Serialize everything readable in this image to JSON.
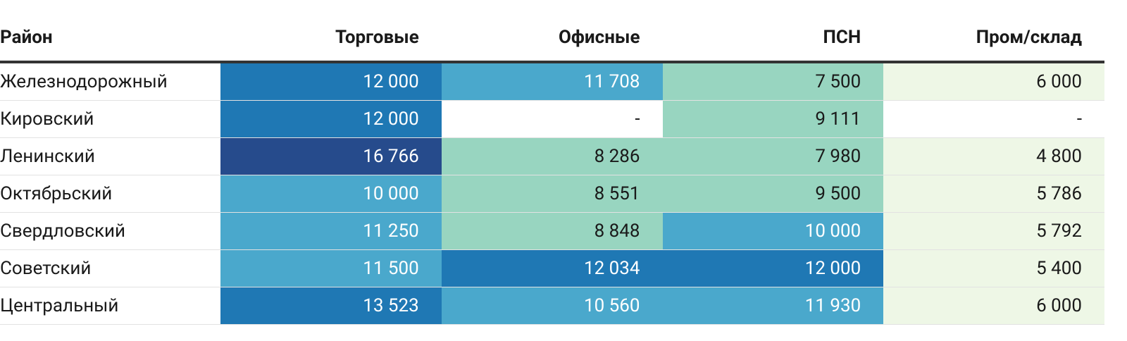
{
  "table": {
    "header": [
      "Район",
      "Торговые",
      "Офисные",
      "ПСН",
      "Пром/склад"
    ],
    "rows": [
      [
        "Железнодорожный",
        "12 000",
        "11 708",
        "7 500",
        "6 000"
      ],
      [
        "Кировский",
        "12 000",
        "-",
        "9 111",
        "-"
      ],
      [
        "Ленинский",
        "16 766",
        "8 286",
        "7 980",
        "4 800"
      ],
      [
        "Октябрьский",
        "10 000",
        "8 551",
        "9 500",
        "5 786"
      ],
      [
        "Свердловский",
        "11 250",
        "8 848",
        "10 000",
        "5 792"
      ],
      [
        "Советский",
        "11 500",
        "12 034",
        "12 000",
        "5 400"
      ],
      [
        "Центральный",
        "13 523",
        "10 560",
        "11 930",
        "6 000"
      ]
    ],
    "cell_colors": [
      [
        "#ffffff",
        "#1f78b4",
        "#4aa8cc",
        "#98d5c0",
        "#eef7e6"
      ],
      [
        "#ffffff",
        "#1f78b4",
        "#ffffff",
        "#98d5c0",
        "#ffffff"
      ],
      [
        "#ffffff",
        "#264b8c",
        "#98d5c0",
        "#98d5c0",
        "#eef7e6"
      ],
      [
        "#ffffff",
        "#4aa8cc",
        "#98d5c0",
        "#98d5c0",
        "#eef7e6"
      ],
      [
        "#ffffff",
        "#4aa8cc",
        "#98d5c0",
        "#4aa8cc",
        "#eef7e6"
      ],
      [
        "#ffffff",
        "#4aa8cc",
        "#1f78b4",
        "#1f78b4",
        "#eef7e6"
      ],
      [
        "#ffffff",
        "#1f78b4",
        "#4aa8cc",
        "#4aa8cc",
        "#eef7e6"
      ]
    ]
  }
}
